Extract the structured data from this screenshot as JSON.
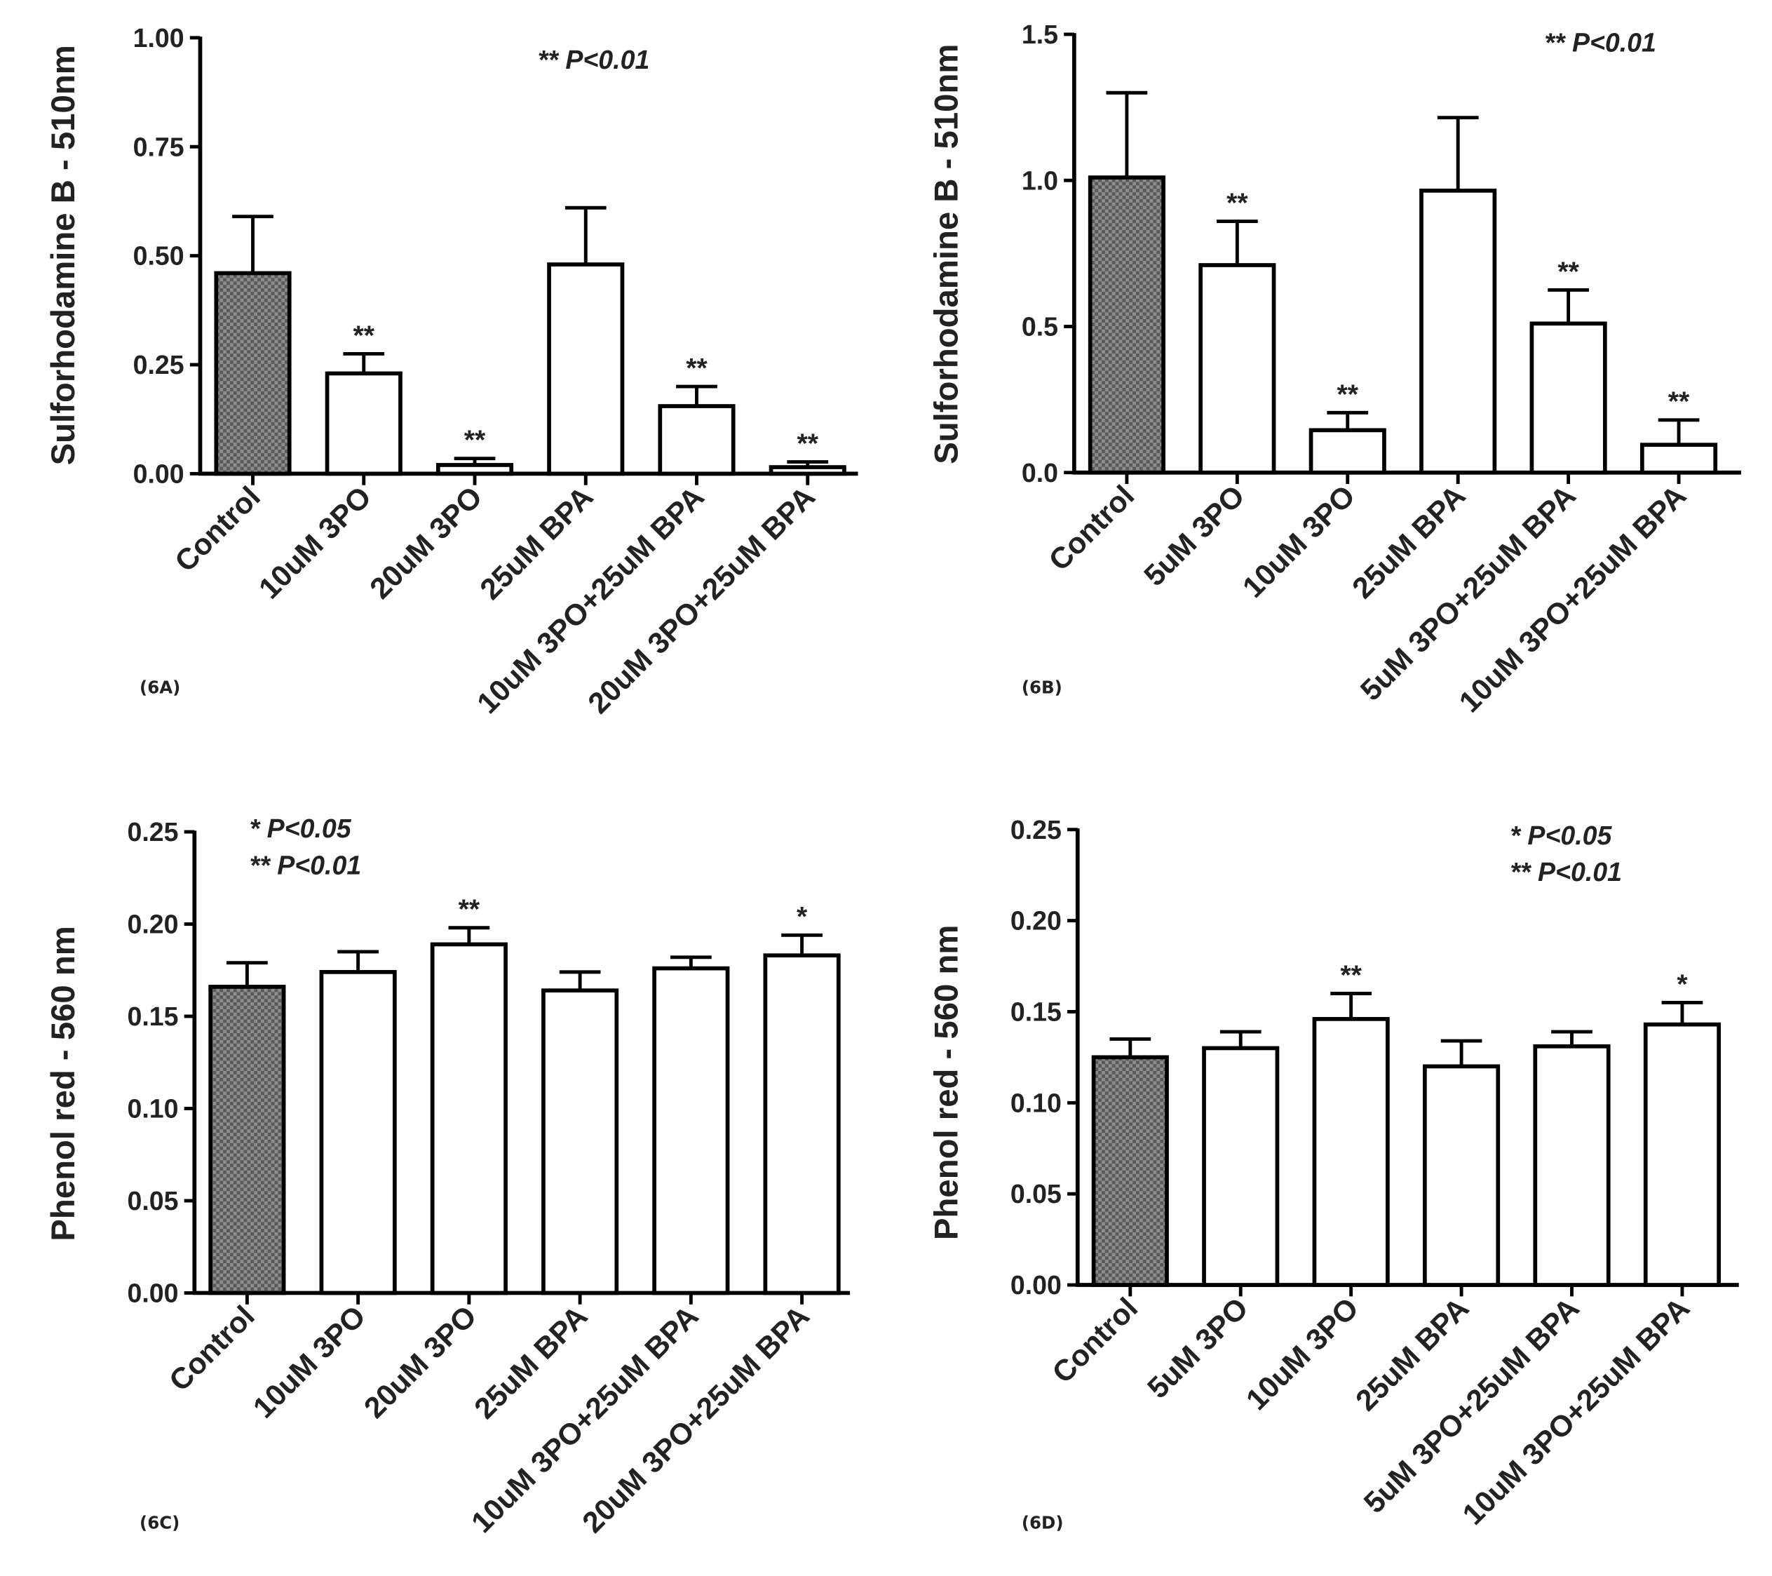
{
  "colors": {
    "control_fill": "#8c8c8c",
    "bar_fill": "#ffffff",
    "stroke": "#000000",
    "text": "#222222"
  },
  "chart_data": [
    {
      "type": "bar",
      "panel_label": "(6A)",
      "ylabel": "Sulforhodamine B - 510nm",
      "ylim": [
        0,
        1.0
      ],
      "yticks": [
        "0.00",
        "0.25",
        "0.50",
        "0.75",
        "1.00"
      ],
      "categories": [
        "Control",
        "10uM 3PO",
        "20uM 3PO",
        "25uM BPA",
        "10uM 3PO+25uM BPA",
        "20uM 3PO+25uM BPA"
      ],
      "values": [
        0.46,
        0.23,
        0.02,
        0.48,
        0.155,
        0.015
      ],
      "errors": [
        0.13,
        0.045,
        0.015,
        0.13,
        0.045,
        0.012
      ],
      "significance": [
        "",
        "**",
        "**",
        "",
        "**",
        "**"
      ],
      "legend": [
        "** P<0.01"
      ]
    },
    {
      "type": "bar",
      "panel_label": "(6B)",
      "ylabel": "Sulforhodamine B - 510nm",
      "ylim": [
        0,
        1.5
      ],
      "yticks": [
        "0.0",
        "0.5",
        "1.0",
        "1.5"
      ],
      "categories": [
        "Control",
        "5uM 3PO",
        "10uM 3PO",
        "25uM BPA",
        "5uM 3PO+25uM BPA",
        "10uM 3PO+25uM BPA"
      ],
      "values": [
        1.01,
        0.71,
        0.145,
        0.965,
        0.51,
        0.095
      ],
      "errors": [
        0.29,
        0.15,
        0.06,
        0.25,
        0.115,
        0.085
      ],
      "significance": [
        "",
        "**",
        "**",
        "",
        "**",
        "**"
      ],
      "legend": [
        "** P<0.01"
      ]
    },
    {
      "type": "bar",
      "panel_label": "(6C)",
      "ylabel": "Phenol red - 560 nm",
      "ylim": [
        0,
        0.25
      ],
      "yticks": [
        "0.00",
        "0.05",
        "0.10",
        "0.15",
        "0.20",
        "0.25"
      ],
      "categories": [
        "Control",
        "10uM 3PO",
        "20uM 3PO",
        "25uM BPA",
        "10uM 3PO+25uM BPA",
        "20uM 3PO+25uM BPA"
      ],
      "values": [
        0.166,
        0.174,
        0.189,
        0.164,
        0.176,
        0.183
      ],
      "errors": [
        0.013,
        0.011,
        0.009,
        0.01,
        0.006,
        0.011
      ],
      "significance": [
        "",
        "",
        "**",
        "",
        "",
        "*"
      ],
      "legend": [
        "* P<0.05",
        "** P<0.01"
      ]
    },
    {
      "type": "bar",
      "panel_label": "(6D)",
      "ylabel": "Phenol red - 560 nm",
      "ylim": [
        0,
        0.25
      ],
      "yticks": [
        "0.00",
        "0.05",
        "0.10",
        "0.15",
        "0.20",
        "0.25"
      ],
      "categories": [
        "Control",
        "5uM 3PO",
        "10uM 3PO",
        "25uM BPA",
        "5uM 3PO+25uM BPA",
        "10uM 3PO+25uM BPA"
      ],
      "values": [
        0.125,
        0.13,
        0.146,
        0.12,
        0.131,
        0.143
      ],
      "errors": [
        0.01,
        0.009,
        0.014,
        0.014,
        0.008,
        0.012
      ],
      "significance": [
        "",
        "",
        "**",
        "",
        "",
        "*"
      ],
      "legend": [
        "* P<0.05",
        "** P<0.01"
      ]
    }
  ]
}
